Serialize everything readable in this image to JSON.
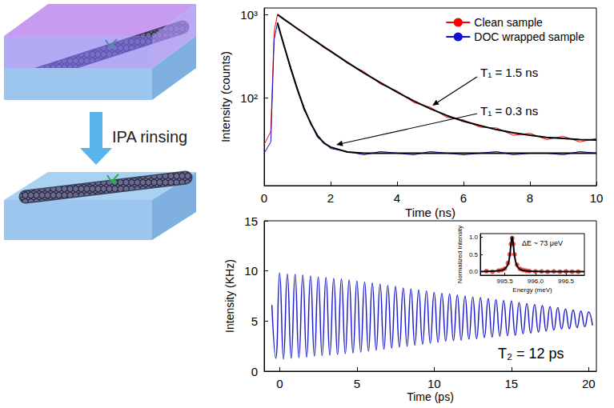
{
  "diagram": {
    "arrow_label": "IPA rinsing"
  },
  "chart_data": [
    {
      "type": "line",
      "x_label": "Time (ns)",
      "y_label": "Intensity (counts)",
      "x": [
        0,
        0.2,
        0.3,
        0.4,
        0.5,
        0.6,
        0.8,
        1,
        1.2,
        1.4,
        1.6,
        1.8,
        2,
        2.5,
        3,
        3.5,
        4,
        4.5,
        5,
        5.5,
        6,
        6.5,
        7,
        7.5,
        8,
        8.5,
        9,
        9.5,
        10
      ],
      "series": [
        {
          "name": "Clean sample",
          "color": "#ff0000",
          "values": [
            28,
            40,
            620,
            1010,
            950,
            860,
            790,
            665,
            610,
            515,
            475,
            400,
            372,
            262,
            208,
            148,
            122,
            89,
            78,
            59,
            55,
            45,
            44,
            36,
            38,
            32,
            35,
            30,
            33
          ],
          "fit": {
            "color": "#000000",
            "values": [
              null,
              null,
              null,
              1000,
              938,
              879,
              773,
              680,
              599,
              528,
              466,
              411,
              364,
              269,
              201,
              153,
              118,
              93,
              75,
              62,
              53,
              47,
              42,
              38.5,
              36,
              34,
              33,
              32,
              31.6
            ]
          }
        },
        {
          "name": "DOC wrapped sample",
          "color": "#1010d0",
          "values": [
            22,
            30,
            500,
            790,
            570,
            430,
            220,
            132,
            72,
            52,
            34,
            30,
            25,
            23,
            21,
            23,
            22,
            21,
            23,
            22,
            21,
            22,
            23,
            21,
            22,
            22,
            21,
            23,
            22
          ],
          "fit": {
            "color": "#000000",
            "values": [
              null,
              null,
              null,
              802,
              581,
              422,
              228,
              127,
              76,
              50,
              36,
              29,
              26,
              22.7,
              22,
              22,
              22,
              22,
              22,
              22,
              22,
              22,
              22,
              22,
              22,
              22,
              22,
              22,
              22
            ]
          }
        }
      ],
      "xlim": [
        0,
        10
      ],
      "ylim": [
        9,
        1200
      ],
      "xticks": [
        0,
        2,
        4,
        6,
        8,
        10
      ],
      "yticks": [
        {
          "value": 100,
          "label": "10²"
        },
        {
          "value": 1000,
          "label": "10³"
        }
      ],
      "log": "y",
      "grid": false,
      "legend": "upper right",
      "annotations": [
        "T₁ = 1.5 ns",
        "T₁ = 0.3 ns"
      ]
    },
    {
      "type": "line",
      "x_label": "Time (ps)",
      "y_label": "Intensity (KHz)",
      "x": [
        -0.5,
        -0.25,
        0,
        0.25,
        0.5,
        0.75,
        1,
        1.25,
        1.5,
        1.75,
        2,
        2.25,
        2.5,
        2.75,
        3,
        3.25,
        3.5,
        3.75,
        4,
        4.25,
        4.5,
        4.75,
        5,
        5.25,
        5.5,
        5.75,
        6,
        6.25,
        6.5,
        6.75,
        7,
        7.25,
        7.5,
        7.75,
        8,
        8.25,
        8.5,
        8.75,
        9,
        9.25,
        9.5,
        9.75,
        10,
        10.25,
        10.5,
        10.75,
        11,
        11.25,
        11.5,
        11.75,
        12,
        12.25,
        12.5,
        12.75,
        13,
        13.25,
        13.5,
        13.75,
        14,
        14.25,
        14.5,
        14.75,
        15,
        15.25,
        15.5,
        15.75,
        16,
        16.25,
        16.5,
        16.75,
        17,
        17.25,
        17.5,
        17.75,
        18,
        18.25,
        18.5,
        18.75,
        19,
        19.25,
        19.5,
        19.75,
        20,
        20.25
      ],
      "series": [
        {
          "color": "#1f1fcf",
          "values": [
            6.6,
            1.3,
            9.8,
            1.2,
            9.7,
            1.3,
            9.65,
            1.35,
            9.6,
            1.4,
            9.5,
            1.5,
            9.4,
            1.55,
            9.35,
            1.6,
            9.25,
            1.65,
            9.2,
            1.75,
            9.1,
            1.8,
            9.0,
            1.9,
            8.9,
            2.0,
            8.8,
            2.1,
            8.7,
            2.2,
            8.55,
            2.3,
            8.45,
            2.4,
            8.3,
            2.5,
            8.2,
            2.6,
            8.1,
            2.7,
            8.0,
            2.8,
            7.85,
            2.9,
            7.75,
            3.0,
            7.7,
            3.05,
            7.6,
            3.1,
            7.5,
            3.2,
            7.4,
            3.25,
            7.35,
            3.35,
            7.25,
            3.4,
            7.15,
            3.5,
            7.05,
            3.55,
            7.0,
            3.6,
            6.85,
            3.75,
            6.75,
            3.8,
            6.65,
            3.9,
            6.55,
            4.0,
            6.45,
            4.1,
            6.35,
            4.2,
            6.2,
            4.25,
            6.1,
            4.35,
            6.0,
            4.45,
            5.9,
            4.55
          ]
        }
      ],
      "xlim": [
        -1,
        20.5
      ],
      "ylim": [
        0,
        15
      ],
      "xticks": [
        0,
        5,
        10,
        15,
        20
      ],
      "yticks": [
        0,
        5,
        10,
        15
      ],
      "grid": false,
      "annotations": [
        "T₂ = 12 ps"
      ]
    },
    {
      "type": "scatter",
      "x_label": "Energy (meV)",
      "y_label": "Normalized Intensity",
      "x": [
        995.2,
        995.3,
        995.4,
        995.45,
        995.5,
        995.55,
        995.58,
        995.6,
        995.62,
        995.64,
        995.66,
        995.7,
        995.75,
        995.8,
        995.85,
        995.9,
        996,
        996.1,
        996.2,
        996.3,
        996.4,
        996.5,
        996.6,
        996.7
      ],
      "series": [
        {
          "color": "#e8322f",
          "marker": "circle",
          "values": [
            0.02,
            0,
            0.03,
            0.05,
            0.09,
            0.25,
            0.5,
            0.8,
            0.97,
            0.8,
            0.5,
            0.2,
            0.08,
            0.05,
            0.03,
            0.02,
            0.01,
            0.01,
            0,
            0.01,
            0,
            0.01,
            0,
            0
          ],
          "fit": {
            "color": "#000000",
            "x": [
              995.1,
              995.3,
              995.45,
              995.5,
              995.55,
              995.58,
              995.6,
              995.62,
              995.64,
              995.66,
              995.7,
              995.75,
              995.8,
              995.9,
              996.1,
              996.4,
              996.8
            ],
            "values": [
              0.005,
              0.013,
              0.044,
              0.085,
              0.21,
              0.45,
              0.77,
              1,
              0.77,
              0.45,
              0.17,
              0.073,
              0.04,
              0.017,
              0.006,
              0.002,
              0.001
            ]
          }
        }
      ],
      "xlim": [
        995.1,
        996.8
      ],
      "ylim": [
        -0.1,
        1.1
      ],
      "xticks": [
        995.5,
        {
          "value": 996,
          "label": "996.0"
        },
        996.5
      ],
      "yticks": [
        {
          "value": 0,
          "label": "0.0"
        },
        0.5,
        {
          "value": 1,
          "label": "1.0"
        }
      ],
      "grid": false,
      "annotations": [
        "ΔE ~ 73 μeV"
      ]
    }
  ]
}
